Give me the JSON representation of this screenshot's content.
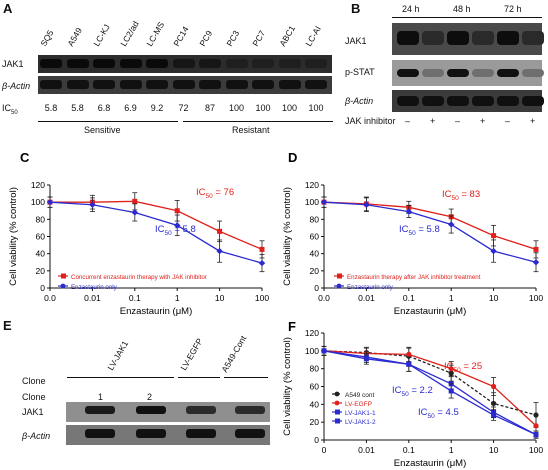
{
  "panels": {
    "A": {
      "letter": "A",
      "lanes": [
        "SQ5",
        "A549",
        "LC-KJ",
        "LC2/ad",
        "LC-MS",
        "PC14",
        "PC9",
        "PC3",
        "PC7",
        "ABC1",
        "LC-AI"
      ],
      "row1": "JAK1",
      "row2": "β-Actin",
      "ic_label": "IC",
      "ic_sub": "50",
      "ic_values": [
        "5.8",
        "5.8",
        "6.8",
        "6.9",
        "9.2",
        "72",
        "87",
        "100",
        "100",
        "100",
        "100"
      ],
      "group1": "Sensitive",
      "group2": "Resistant"
    },
    "B": {
      "letter": "B",
      "times": [
        "24 h",
        "48 h",
        "72 h"
      ],
      "rows": [
        "JAK1",
        "p-STAT",
        "β-Actin"
      ],
      "inhibitor_label": "JAK inhibitor",
      "signs": [
        "–",
        "+",
        "–",
        "+",
        "–",
        "+"
      ]
    },
    "E": {
      "letter": "E",
      "clone_header": "Clone",
      "groups": [
        "LV-JAK1",
        "LV-EGFP",
        "A549-Cont"
      ],
      "clone_row_label": "Clone",
      "clone_numbers": [
        "1",
        "2"
      ],
      "row1": "JAK1",
      "row2": "β-Actin"
    }
  },
  "chart_data": [
    {
      "panel": "C",
      "type": "line",
      "ylabel": "Cell viability (% control)",
      "xlabel": "Enzastaurin (μM)",
      "x_categories": [
        "0.0",
        "0.01",
        "0.1",
        "1",
        "10",
        "100"
      ],
      "ylim": [
        0,
        120
      ],
      "yticks": [
        0,
        20,
        40,
        60,
        80,
        100,
        120
      ],
      "series": [
        {
          "name": "Concurrent enzastaurin therapy with JAK inhibitor",
          "color": "#e0201b",
          "marker": "square",
          "values": [
            100,
            100,
            101,
            90,
            66,
            45
          ],
          "errors": [
            6,
            8,
            10,
            12,
            12,
            10
          ]
        },
        {
          "name": "Enzastaurin only",
          "color": "#2a2ad0",
          "marker": "diamond",
          "values": [
            100,
            97,
            88,
            73,
            43,
            29
          ],
          "errors": [
            6,
            8,
            10,
            12,
            13,
            10
          ]
        }
      ],
      "annotations": [
        {
          "text": "IC",
          "sub": "50",
          "value": " = 76",
          "color": "#e0201b"
        },
        {
          "text": "IC",
          "sub": "50",
          "value": " = 5.8",
          "color": "#2a2ad0"
        }
      ]
    },
    {
      "panel": "D",
      "type": "line",
      "ylabel": "Cell viability (% control)",
      "xlabel": "Enzastaurin (μM)",
      "x_categories": [
        "0.0",
        "0.01",
        "0.1",
        "1",
        "10",
        "100"
      ],
      "ylim": [
        0,
        120
      ],
      "yticks": [
        0,
        20,
        40,
        60,
        80,
        100,
        120
      ],
      "series": [
        {
          "name": "Enzastaurin therapy after JAK inhibitor treatment",
          "color": "#e0201b",
          "marker": "square",
          "values": [
            100,
            98,
            94,
            83,
            61,
            45
          ],
          "errors": [
            6,
            8,
            7,
            9,
            12,
            10
          ]
        },
        {
          "name": "Enzastaurin only",
          "color": "#2a2ad0",
          "marker": "diamond",
          "values": [
            100,
            97,
            89,
            74,
            43,
            30
          ],
          "errors": [
            6,
            8,
            7,
            10,
            13,
            11
          ]
        }
      ],
      "annotations": [
        {
          "text": "IC",
          "sub": "50",
          "value": " = 83",
          "color": "#e0201b"
        },
        {
          "text": "IC",
          "sub": "50",
          "value": " = 5.8",
          "color": "#2a2ad0"
        }
      ]
    },
    {
      "panel": "F",
      "type": "line",
      "ylabel": "Cell viability (% control)",
      "xlabel": "Enzastaurin (μM)",
      "x_categories": [
        "0",
        "0.01",
        "0.1",
        "1",
        "10",
        "100"
      ],
      "ylim": [
        0,
        120
      ],
      "yticks": [
        0,
        20,
        40,
        60,
        80,
        100,
        120
      ],
      "series": [
        {
          "name": "A549 cont",
          "color": "#222222",
          "marker": "circle",
          "dashed": true,
          "values": [
            100,
            98,
            94,
            75,
            41,
            28
          ],
          "errors": [
            5,
            6,
            9,
            9,
            12,
            14
          ]
        },
        {
          "name": "LV-EGFP",
          "color": "#e0201b",
          "marker": "circle",
          "dashed": false,
          "values": [
            100,
            97,
            96,
            80,
            60,
            16
          ],
          "errors": [
            5,
            6,
            8,
            8,
            10,
            12
          ]
        },
        {
          "name": "LV-JAK1-1",
          "color": "#2a2ad0",
          "marker": "square",
          "dashed": false,
          "values": [
            100,
            93,
            85,
            63,
            31,
            6
          ],
          "errors": [
            5,
            6,
            8,
            8,
            6,
            4
          ]
        },
        {
          "name": "LV-JAK1-2",
          "color": "#2a2ad0",
          "marker": "square",
          "dashed": false,
          "values": [
            100,
            91,
            85,
            55,
            28,
            6
          ],
          "errors": [
            5,
            6,
            8,
            8,
            6,
            4
          ]
        }
      ],
      "annotations": [
        {
          "text": "IC",
          "sub": "50",
          "value": " = 25",
          "color": "#e0201b"
        },
        {
          "text": "IC",
          "sub": "50",
          "value": " = 2.2",
          "color": "#2a2ad0"
        },
        {
          "text": "IC",
          "sub": "50",
          "value": " = 4.5",
          "color": "#2a2ad0"
        }
      ]
    }
  ]
}
